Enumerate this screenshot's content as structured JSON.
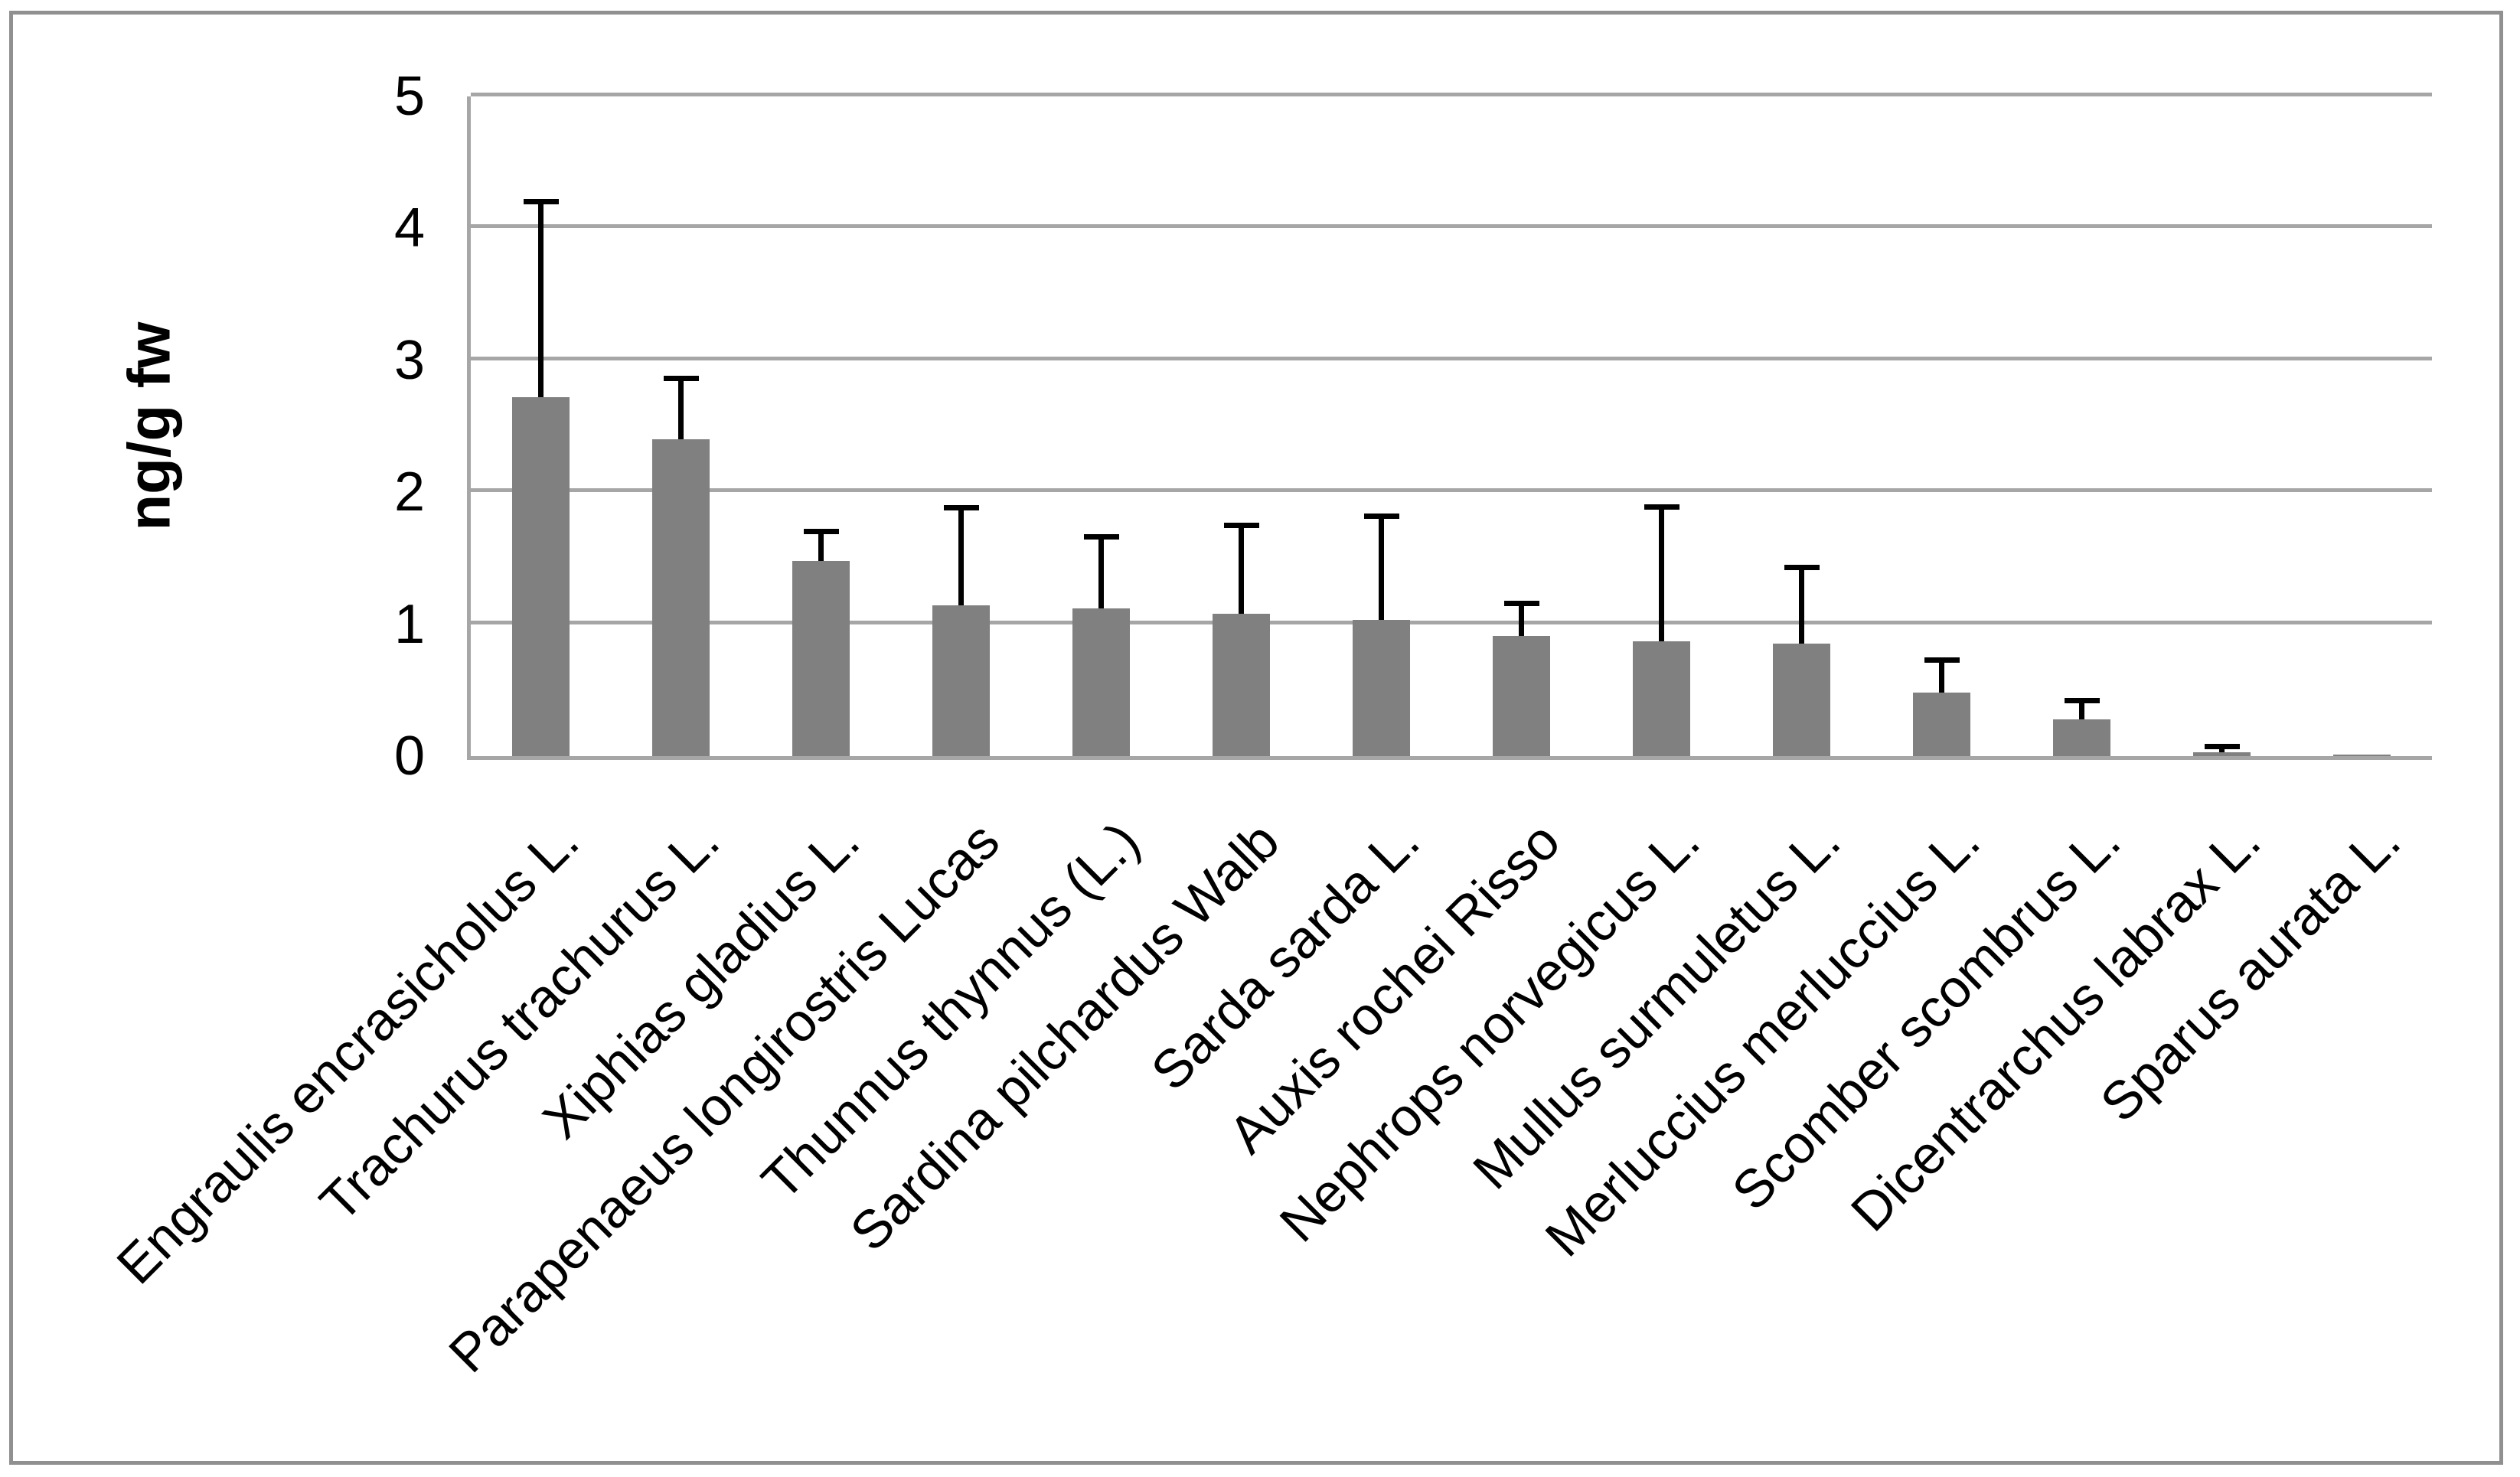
{
  "chart_data": {
    "type": "bar",
    "title": "",
    "xlabel": "",
    "ylabel": "ng/g fw",
    "ylim": [
      0,
      5
    ],
    "yticks": [
      0,
      1,
      2,
      3,
      4,
      5
    ],
    "grid": true,
    "legend": false,
    "bar_color": "#808080",
    "error_bar_color": "#000000",
    "gridline_color": "#a6a6a6",
    "border_color": "#909090",
    "categories": [
      "Engraulis encrasicholus L.",
      "Trachurus trachurus L.",
      "Xiphias gladius L.",
      "Parapenaeus longirostris Lucas",
      "Thunnus thynnus (L.)",
      "Sardina pilchardus Walb",
      "Sarda sarda L.",
      "Auxis rochei Risso",
      "Nephrops norvegicus L.",
      "Mullus surmuletus L.",
      "Merluccius merluccius L.",
      "Scomber scombrus L.",
      "Dicentrarchus labrax L.",
      "Sparus aurata L."
    ],
    "values": [
      2.72,
      2.4,
      1.48,
      1.14,
      1.12,
      1.08,
      1.03,
      0.91,
      0.87,
      0.85,
      0.48,
      0.28,
      0.03,
      0.01
    ],
    "error_plus": [
      1.48,
      0.46,
      0.22,
      0.74,
      0.54,
      0.67,
      0.79,
      0.25,
      1.02,
      0.58,
      0.25,
      0.14,
      0.04,
      0
    ]
  }
}
